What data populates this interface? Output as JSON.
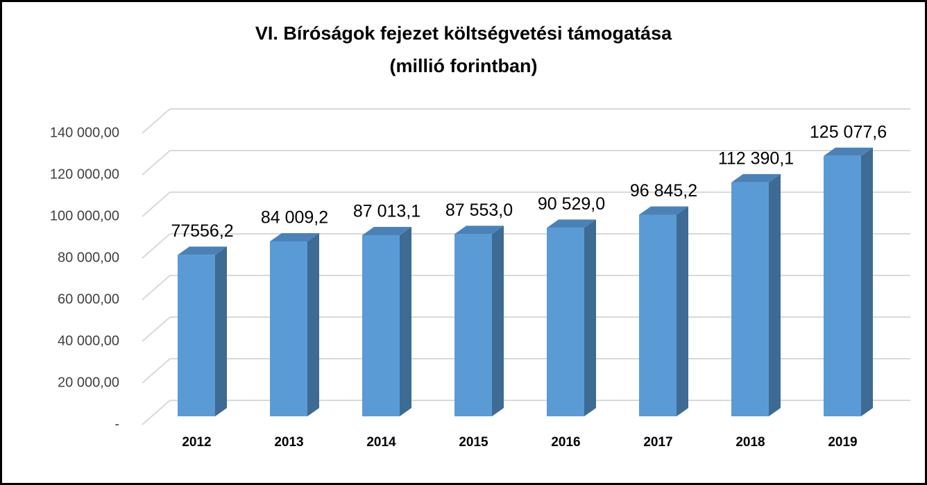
{
  "chart_data": {
    "type": "bar3d",
    "title": [
      "VI. Bíróságok fejezet költségvetési támogatása",
      "(millió forintban)"
    ],
    "categories": [
      "2012",
      "2013",
      "2014",
      "2015",
      "2016",
      "2017",
      "2018",
      "2019"
    ],
    "values": [
      77556.2,
      84009.2,
      87013.1,
      87553.0,
      90529.0,
      96845.2,
      112390.1,
      125077.6
    ],
    "value_labels": [
      "77556,2",
      "84 009,2",
      "87 013,1",
      "87 553,0",
      "90 529,0",
      "96 845,2",
      "112 390,1",
      "125 077,6"
    ],
    "color": "#5b9bd5",
    "ylim": [
      0,
      140000
    ],
    "yticks": [
      {
        "value": 0,
        "label": "-"
      },
      {
        "value": 20000,
        "label": "20 000,00"
      },
      {
        "value": 40000,
        "label": "40 000,00"
      },
      {
        "value": 60000,
        "label": "60 000,00"
      },
      {
        "value": 80000,
        "label": "80 000,00"
      },
      {
        "value": 100000,
        "label": "100 000,00"
      },
      {
        "value": 120000,
        "label": "120 000,00"
      },
      {
        "value": 140000,
        "label": "140 000,00"
      }
    ],
    "grid": true
  }
}
